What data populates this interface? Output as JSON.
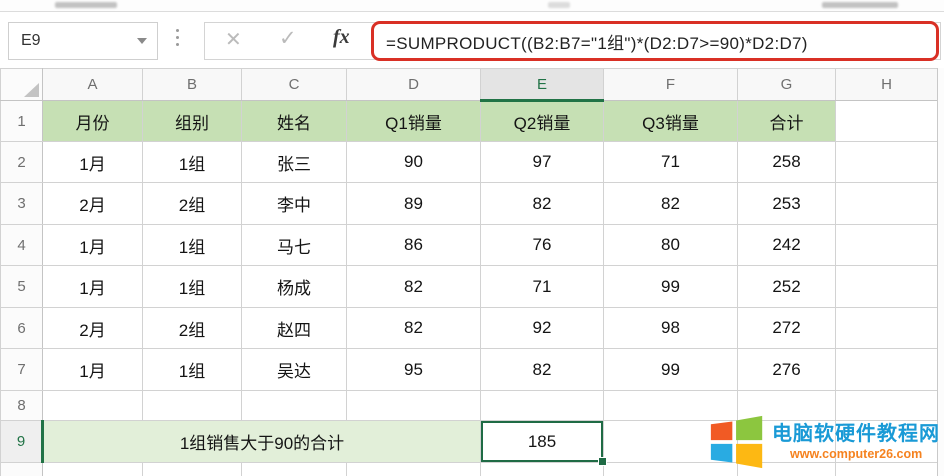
{
  "name_box": {
    "value": "E9"
  },
  "formula_bar": {
    "cancel_icon": "✕",
    "enter_icon": "✓",
    "fx_label": "fx",
    "formula": "=SUMPRODUCT((B2:B7=\"1组\")*(D2:D7>=90)*D2:D7)"
  },
  "sheet": {
    "column_headers": [
      "A",
      "B",
      "C",
      "D",
      "E",
      "F",
      "G",
      "H"
    ],
    "selection": {
      "column": "E",
      "row": "9",
      "cell_ref": "E9",
      "value": "185"
    },
    "rows": [
      {
        "n": "1",
        "type": "header",
        "cells": [
          "月份",
          "组别",
          "姓名",
          "Q1销量",
          "Q2销量",
          "Q3销量",
          "合计",
          ""
        ]
      },
      {
        "n": "2",
        "cells": [
          "1月",
          "1组",
          "张三",
          "90",
          "97",
          "71",
          "258",
          ""
        ]
      },
      {
        "n": "3",
        "cells": [
          "2月",
          "2组",
          "李中",
          "89",
          "82",
          "82",
          "253",
          ""
        ]
      },
      {
        "n": "4",
        "cells": [
          "1月",
          "1组",
          "马七",
          "86",
          "76",
          "80",
          "242",
          ""
        ]
      },
      {
        "n": "5",
        "cells": [
          "1月",
          "1组",
          "杨成",
          "82",
          "71",
          "99",
          "252",
          ""
        ]
      },
      {
        "n": "6",
        "cells": [
          "2月",
          "2组",
          "赵四",
          "82",
          "92",
          "98",
          "272",
          ""
        ]
      },
      {
        "n": "7",
        "cells": [
          "1月",
          "1组",
          "吴达",
          "95",
          "82",
          "99",
          "276",
          ""
        ]
      },
      {
        "n": "8",
        "cells": [
          "",
          "",
          "",
          "",
          "",
          "",
          "",
          ""
        ]
      },
      {
        "n": "9",
        "type": "summary",
        "label": "1组销售大于90的合计",
        "value": "185"
      },
      {
        "n": "",
        "cells": [
          "",
          "",
          "",
          "",
          "",
          "",
          "",
          ""
        ]
      }
    ]
  },
  "colors": {
    "header_fill_green": "#c6e0b4",
    "summary_fill_green": "#e2efd9",
    "selection_green": "#1f6b45",
    "annotation_red": "#d93025",
    "watermark_blue": "#1a9ad6",
    "watermark_orange": "#f5821f",
    "logo_orange": "#f15a24",
    "logo_green": "#8cc63f",
    "logo_blue": "#29abe2",
    "logo_yellow": "#fdb813"
  },
  "watermark": {
    "site_name": "电脑软硬件教程网",
    "site_url": "www.computer26.com"
  }
}
